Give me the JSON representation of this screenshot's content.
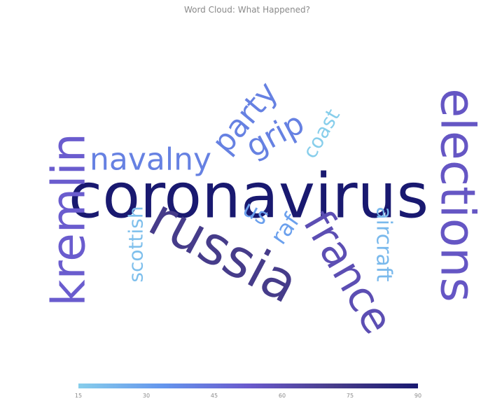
{
  "chart_data": {
    "type": "word_cloud",
    "title": "Word Cloud: What Happened?",
    "words": [
      {
        "text": "coronavirus",
        "value": 90
      },
      {
        "text": "russia",
        "value": 72
      },
      {
        "text": "france",
        "value": 60
      },
      {
        "text": "elections",
        "value": 55
      },
      {
        "text": "kremlin",
        "value": 52
      },
      {
        "text": "navalny",
        "value": 40
      },
      {
        "text": "party",
        "value": 40
      },
      {
        "text": "grip",
        "value": 40
      },
      {
        "text": "raf",
        "value": 30
      },
      {
        "text": "us",
        "value": 30
      },
      {
        "text": "aircraft",
        "value": 22
      },
      {
        "text": "scottish",
        "value": 20
      },
      {
        "text": "coast",
        "value": 15
      }
    ],
    "colorscale": {
      "min": 15,
      "max": 90,
      "ticks": [
        "15",
        "30",
        "45",
        "60",
        "75",
        "90"
      ],
      "colors": [
        "#87ceeb",
        "#6495ed",
        "#6a5acd",
        "#483d8b",
        "#191970"
      ]
    }
  }
}
